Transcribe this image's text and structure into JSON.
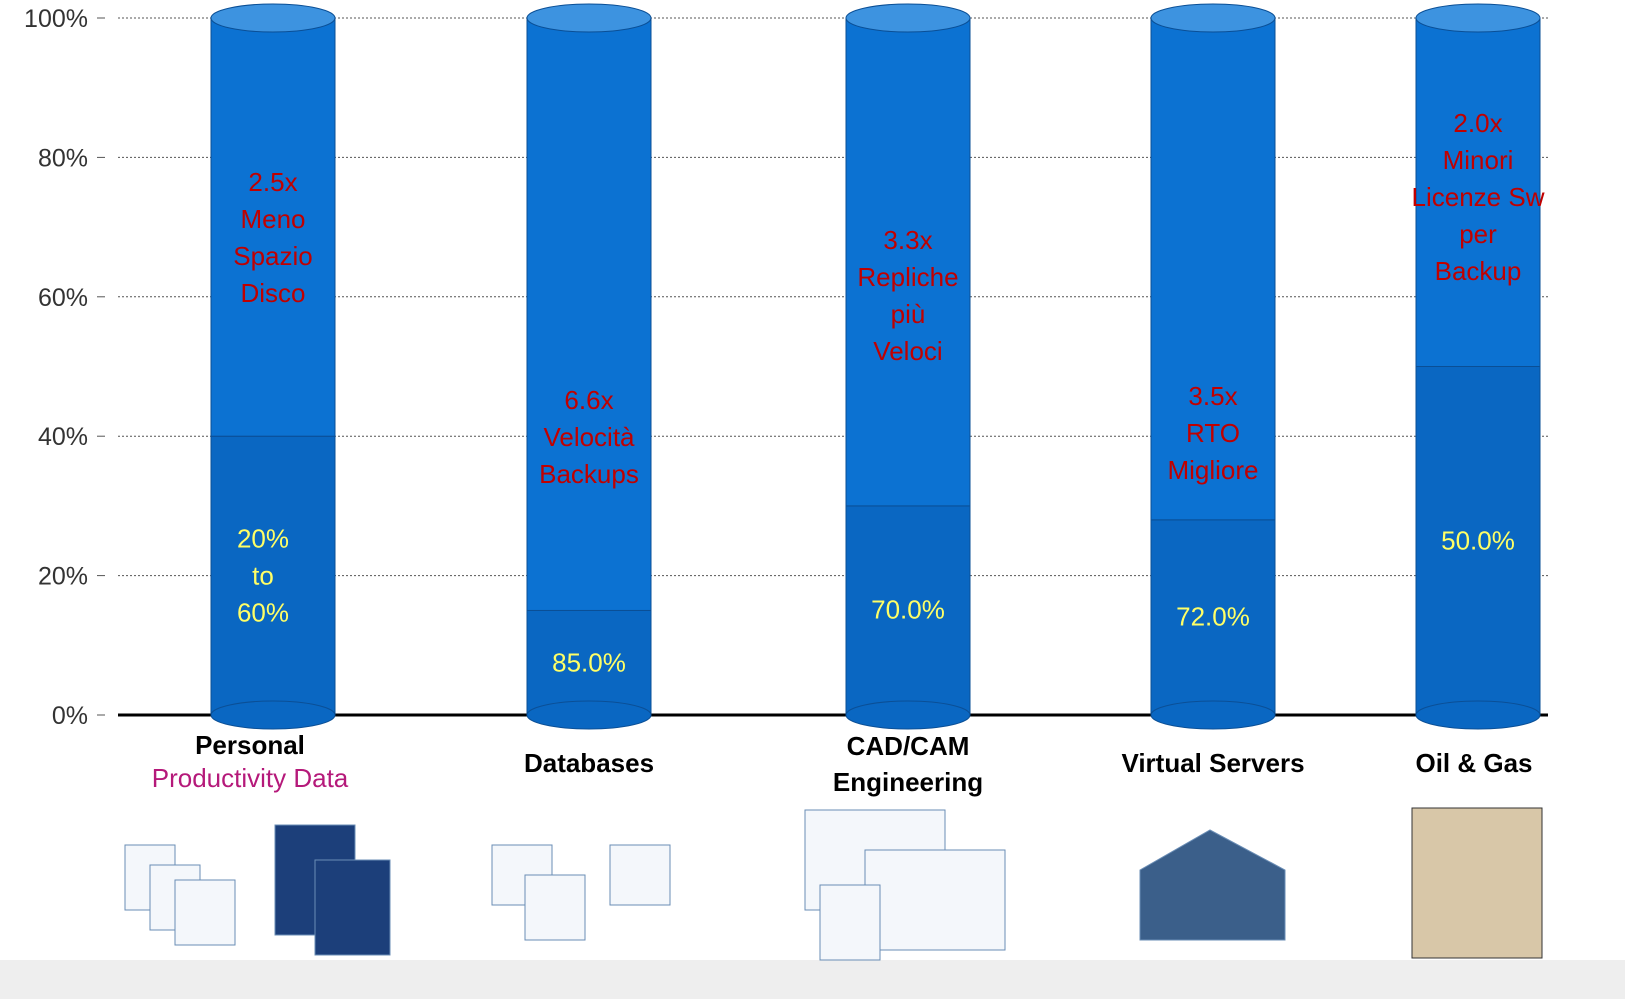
{
  "chart_data": {
    "type": "stacked-cylinder",
    "categories": [
      "Personal",
      "Databases",
      "CAD/CAM Engineering",
      "Virtual Servers",
      "Oil & Gas"
    ],
    "category_note": "Productivity Data",
    "series": [
      {
        "color": "#0a67c2",
        "values": [
          40,
          15,
          30,
          28,
          50
        ]
      },
      {
        "color": "#0c72d2",
        "values": [
          60,
          85,
          70,
          72,
          50
        ],
        "value_labels": [
          "20% to 60%",
          "85.0%",
          "70.0%",
          "72.0%",
          "50.0%"
        ]
      }
    ],
    "annotations": [
      [
        "2.5x",
        "Meno",
        "Spazio",
        "Disco"
      ],
      [
        "6.6x",
        "Velocità",
        "Backups"
      ],
      [
        "3.3x",
        "Repliche",
        "più",
        "Veloci"
      ],
      [
        "3.5x",
        "RTO",
        "Migliore"
      ],
      [
        "2.0x",
        "Minori",
        "Licenze Sw",
        "per",
        "Backup"
      ]
    ],
    "ylim": [
      0,
      100
    ],
    "yticks": [
      {
        "value": 0,
        "label": "0%"
      },
      {
        "value": 20,
        "label": "20%"
      },
      {
        "value": 40,
        "label": "40%"
      },
      {
        "value": 60,
        "label": "60%"
      },
      {
        "value": 80,
        "label": "80%"
      },
      {
        "value": 100,
        "label": "100%"
      }
    ],
    "grid": true
  }
}
